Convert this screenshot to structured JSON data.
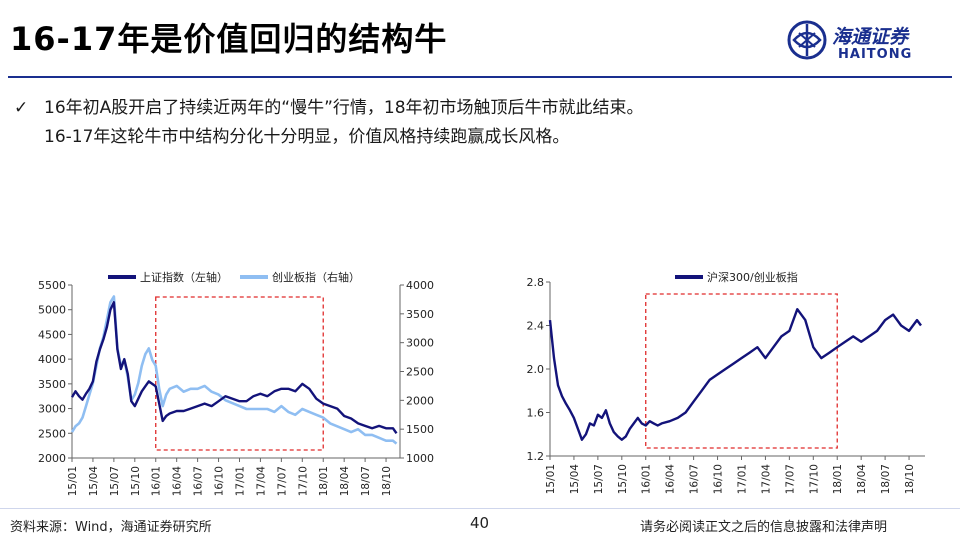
{
  "title": "16-17年是价值回归的结构牛",
  "logo": {
    "cn": "海通证券",
    "en": "HAITONG"
  },
  "bullets": [
    "16年初A股开启了持续近两年的“慢牛”行情，18年初市场触顶后牛市就此结束。",
    "16-17年这轮牛市中结构分化十分明显，价值风格持续跑赢成长风格。"
  ],
  "colors": {
    "series_dark": "#13137a",
    "series_light": "#8fbef2",
    "box": "#e02b2b",
    "brand": "#1a2f8f"
  },
  "chart_data": [
    {
      "type": "line",
      "legend": [
        "上证指数（左轴）",
        "创业板指（右轴）"
      ],
      "x_ticks": [
        "15/01",
        "15/04",
        "15/07",
        "15/10",
        "16/01",
        "16/04",
        "16/07",
        "16/10",
        "17/01",
        "17/04",
        "17/07",
        "17/10",
        "18/01",
        "18/04",
        "18/07",
        "18/10"
      ],
      "y_left": {
        "ticks": [
          "2000",
          "2500",
          "3000",
          "3500",
          "4000",
          "4500",
          "5000",
          "5500"
        ],
        "ylim": [
          2000,
          5500
        ]
      },
      "y_right": {
        "ticks": [
          "1000",
          "1500",
          "2000",
          "2500",
          "3000",
          "3500",
          "4000"
        ],
        "ylim": [
          1000,
          4000
        ]
      },
      "highlight_range": [
        "16/01",
        "18/01"
      ],
      "series": [
        {
          "name": "上证指数（左轴）",
          "axis": "left",
          "x": [
            0,
            0.5,
            1,
            1.5,
            2,
            2.5,
            3,
            3.5,
            4,
            4.5,
            5,
            5.5,
            6,
            6.5,
            7,
            7.5,
            8,
            8.5,
            9,
            9.5,
            10,
            10.5,
            11,
            11.5,
            12,
            12.5,
            13,
            13.5,
            14,
            15,
            16,
            17,
            18,
            19,
            20,
            21,
            22,
            23,
            24,
            25,
            26,
            27,
            28,
            29,
            30,
            31,
            32,
            33,
            34,
            35,
            36,
            37,
            38,
            39,
            40,
            41,
            42,
            43,
            44,
            45,
            46,
            46.5
          ],
          "values": [
            3230,
            3350,
            3250,
            3180,
            3300,
            3400,
            3550,
            3950,
            4200,
            4400,
            4650,
            5000,
            5150,
            4200,
            3800,
            4000,
            3700,
            3150,
            3050,
            3200,
            3350,
            3450,
            3550,
            3500,
            3450,
            3100,
            2750,
            2850,
            2900,
            2950,
            2950,
            3000,
            3050,
            3100,
            3050,
            3150,
            3250,
            3200,
            3150,
            3150,
            3250,
            3300,
            3250,
            3350,
            3400,
            3400,
            3350,
            3500,
            3400,
            3200,
            3100,
            3050,
            3000,
            2850,
            2800,
            2700,
            2650,
            2600,
            2650,
            2600,
            2600,
            2500
          ]
        },
        {
          "name": "创业板指（右轴）",
          "axis": "right",
          "x": [
            0,
            0.5,
            1,
            1.5,
            2,
            2.5,
            3,
            3.5,
            4,
            4.5,
            5,
            5.5,
            6,
            6.5,
            7,
            7.5,
            8,
            8.5,
            9,
            9.5,
            10,
            10.5,
            11,
            11.5,
            12,
            12.5,
            13,
            13.5,
            14,
            15,
            16,
            17,
            18,
            19,
            20,
            21,
            22,
            23,
            24,
            25,
            26,
            27,
            28,
            29,
            30,
            31,
            32,
            33,
            34,
            35,
            36,
            37,
            38,
            39,
            40,
            41,
            42,
            43,
            44,
            45,
            46,
            46.5
          ],
          "values": [
            1450,
            1550,
            1600,
            1700,
            1900,
            2100,
            2300,
            2600,
            2900,
            3100,
            3400,
            3700,
            3800,
            2900,
            2600,
            2700,
            2400,
            2000,
            2100,
            2300,
            2600,
            2800,
            2900,
            2700,
            2600,
            2200,
            1900,
            2100,
            2200,
            2250,
            2150,
            2200,
            2200,
            2250,
            2150,
            2100,
            2000,
            1950,
            1900,
            1850,
            1850,
            1850,
            1850,
            1800,
            1900,
            1800,
            1750,
            1850,
            1800,
            1750,
            1700,
            1600,
            1550,
            1500,
            1450,
            1500,
            1400,
            1400,
            1350,
            1300,
            1300,
            1250
          ]
        }
      ]
    },
    {
      "type": "line",
      "legend": [
        "沪深300/创业板指"
      ],
      "x_ticks": [
        "15/01",
        "15/04",
        "15/07",
        "15/10",
        "16/01",
        "16/04",
        "16/07",
        "16/10",
        "17/01",
        "17/04",
        "17/07",
        "17/10",
        "18/01",
        "18/04",
        "18/07",
        "18/10"
      ],
      "y_left": {
        "ticks": [
          "1.2",
          "1.6",
          "2.0",
          "2.4",
          "2.8"
        ],
        "ylim": [
          1.2,
          2.8
        ]
      },
      "highlight_range": [
        "16/01",
        "18/01"
      ],
      "series": [
        {
          "name": "沪深300/创业板指",
          "axis": "left",
          "x": [
            0,
            0.5,
            1,
            1.5,
            2,
            2.5,
            3,
            3.5,
            4,
            4.5,
            5,
            5.5,
            6,
            6.5,
            7,
            7.5,
            8,
            8.5,
            9,
            9.5,
            10,
            10.5,
            11,
            11.5,
            12,
            12.5,
            13,
            13.5,
            14,
            15,
            16,
            17,
            18,
            19,
            20,
            21,
            22,
            23,
            24,
            25,
            26,
            27,
            28,
            29,
            30,
            31,
            32,
            33,
            34,
            35,
            36,
            37,
            38,
            39,
            40,
            41,
            42,
            43,
            44,
            45,
            46,
            46.5
          ],
          "values": [
            2.45,
            2.1,
            1.85,
            1.75,
            1.68,
            1.62,
            1.55,
            1.45,
            1.35,
            1.4,
            1.5,
            1.48,
            1.58,
            1.55,
            1.62,
            1.5,
            1.42,
            1.38,
            1.35,
            1.38,
            1.45,
            1.5,
            1.55,
            1.5,
            1.48,
            1.52,
            1.5,
            1.48,
            1.5,
            1.52,
            1.55,
            1.6,
            1.7,
            1.8,
            1.9,
            1.95,
            2.0,
            2.05,
            2.1,
            2.15,
            2.2,
            2.1,
            2.2,
            2.3,
            2.35,
            2.55,
            2.45,
            2.2,
            2.1,
            2.15,
            2.2,
            2.25,
            2.3,
            2.25,
            2.3,
            2.35,
            2.45,
            2.5,
            2.4,
            2.35,
            2.45,
            2.4
          ]
        }
      ]
    }
  ],
  "footer": {
    "source": "资料来源：Wind，海通证券研究所",
    "page": "40",
    "disclaimer": "请务必阅读正文之后的信息披露和法律声明"
  }
}
